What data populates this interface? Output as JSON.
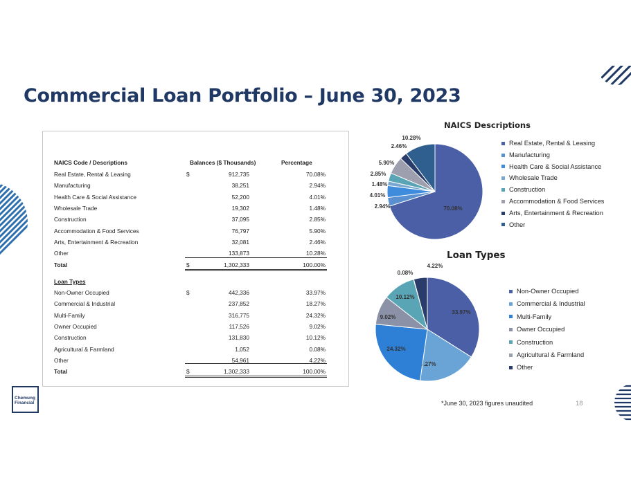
{
  "page": {
    "title": "Commercial Loan Portfolio – June 30, 2023",
    "footnote": "*June 30, 2023 figures unaudited",
    "page_number": "18",
    "logo_line1": "Chemung",
    "logo_line2": "Financial"
  },
  "table": {
    "header": {
      "label": "NAICS Code / Descriptions",
      "balances": "Balances ($ Thousands)",
      "percentage": "Percentage"
    },
    "currency": "$",
    "naics_rows": [
      {
        "label": "Real Estate, Rental & Leasing",
        "dollar": "$",
        "balance": "912,735",
        "pct": "70.08%"
      },
      {
        "label": "Manufacturing",
        "dollar": "",
        "balance": "38,251",
        "pct": "2.94%"
      },
      {
        "label": "Health Care & Social Assistance",
        "dollar": "",
        "balance": "52,200",
        "pct": "4.01%"
      },
      {
        "label": "Wholesale Trade",
        "dollar": "",
        "balance": "19,302",
        "pct": "1.48%"
      },
      {
        "label": "Construction",
        "dollar": "",
        "balance": "37,095",
        "pct": "2.85%"
      },
      {
        "label": "Accommodation & Food Services",
        "dollar": "",
        "balance": "76,797",
        "pct": "5.90%"
      },
      {
        "label": "Arts, Entertainment & Recreation",
        "dollar": "",
        "balance": "32,081",
        "pct": "2.46%"
      },
      {
        "label": "Other",
        "dollar": "",
        "balance": "133,873",
        "pct": "10.28%"
      }
    ],
    "naics_total": {
      "label": "Total",
      "dollar": "$",
      "balance": "1,302,333",
      "pct": "100.00%"
    },
    "loan_types_heading": "Loan Types",
    "loan_rows": [
      {
        "label": "Non-Owner Occupied",
        "dollar": "$",
        "balance": "442,336",
        "pct": "33.97%"
      },
      {
        "label": "Commercial & Industrial",
        "dollar": "",
        "balance": "237,852",
        "pct": "18.27%"
      },
      {
        "label": "Multi-Family",
        "dollar": "",
        "balance": "316,775",
        "pct": "24.32%"
      },
      {
        "label": "Owner Occupied",
        "dollar": "",
        "balance": "117,526",
        "pct": "9.02%"
      },
      {
        "label": "Construction",
        "dollar": "",
        "balance": "131,830",
        "pct": "10.12%"
      },
      {
        "label": "Agricultural & Farmland",
        "dollar": "",
        "balance": "1,052",
        "pct": "0.08%"
      },
      {
        "label": "Other",
        "dollar": "",
        "balance": "54,961",
        "pct": "4.22%"
      }
    ],
    "loan_total": {
      "label": "Total",
      "dollar": "$",
      "balance": "1,302,333",
      "pct": "100.00%"
    }
  },
  "chart_data": [
    {
      "type": "pie",
      "title": "NAICS Descriptions",
      "categories": [
        "Real Estate, Rental & Leasing",
        "Manufacturing",
        "Health Care & Social Assistance",
        "Wholesale Trade",
        "Construction",
        "Accommodation & Food Services",
        "Arts, Entertainment & Recreation",
        "Other"
      ],
      "values": [
        70.08,
        2.94,
        4.01,
        1.48,
        2.85,
        5.9,
        2.46,
        10.28
      ],
      "labels": [
        "70.08%",
        "2.94%",
        "4.01%",
        "1.48%",
        "2.85%",
        "5.90%",
        "2.46%",
        "10.28%"
      ],
      "colors": [
        "#4a5fa6",
        "#5a8fd0",
        "#3f8bdc",
        "#78a8cf",
        "#5aa5b5",
        "#9d9fae",
        "#2a3c6a",
        "#2e5f8f"
      ],
      "legend": "right"
    },
    {
      "type": "pie",
      "title": "Loan Types",
      "categories": [
        "Non-Owner Occupied",
        "Commercial & Industrial",
        "Multi-Family",
        "Owner Occupied",
        "Construction",
        "Agricultural & Farmland",
        "Other"
      ],
      "values": [
        33.97,
        18.27,
        24.32,
        9.02,
        10.12,
        0.08,
        4.22
      ],
      "labels": [
        "33.97%",
        "18.27%",
        "24.32%",
        "9.02%",
        "10.12%",
        "0.08%",
        "4.22%"
      ],
      "colors": [
        "#4a5fa6",
        "#6aa3d6",
        "#2e7fd6",
        "#8b91a6",
        "#5aa5b5",
        "#9aa0ad",
        "#2a3c6a"
      ],
      "legend": "right"
    }
  ]
}
